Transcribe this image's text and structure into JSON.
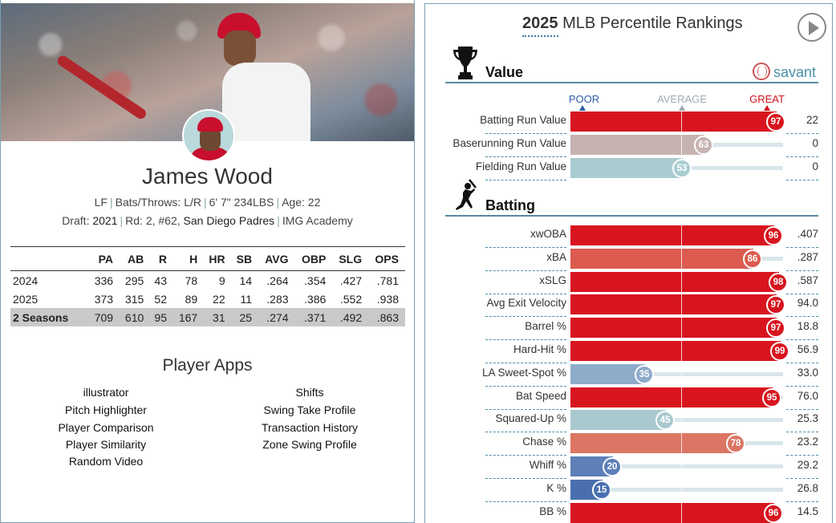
{
  "player": {
    "name": "James Wood",
    "bio": {
      "position": "LF",
      "bats_throws": "Bats/Throws: L/R",
      "size": "6' 7\" 234LBS",
      "age": "Age: 22"
    },
    "draft": {
      "label": "Draft:",
      "year": "2021",
      "round": "Rd: 2, #62,",
      "team": "San Diego Padres",
      "school": "IMG Academy"
    }
  },
  "stats_table": {
    "headers": [
      "",
      "PA",
      "AB",
      "R",
      "H",
      "HR",
      "SB",
      "AVG",
      "OBP",
      "SLG",
      "OPS"
    ],
    "rows": [
      [
        "2024",
        "336",
        "295",
        "43",
        "78",
        "9",
        "14",
        ".264",
        ".354",
        ".427",
        ".781"
      ],
      [
        "2025",
        "373",
        "315",
        "52",
        "89",
        "22",
        "11",
        ".283",
        ".386",
        ".552",
        ".938"
      ],
      [
        "2 Seasons",
        "709",
        "610",
        "95",
        "167",
        "31",
        "25",
        ".274",
        ".371",
        ".492",
        ".863"
      ]
    ]
  },
  "player_apps": {
    "title": "Player Apps",
    "left": [
      "illustrator",
      "Pitch Highlighter",
      "Player Comparison",
      "Player Similarity",
      "Random Video"
    ],
    "right": [
      "Shifts",
      "Swing Take Profile",
      "Transaction History",
      "Zone Swing Profile"
    ]
  },
  "rankings": {
    "title_year": "2025",
    "title_rest": "MLB Percentile Rankings",
    "brand": "savant",
    "scale": {
      "poor": "POOR",
      "average": "AVERAGE",
      "great": "GREAT"
    },
    "colors": {
      "poor": "#2e5ea8",
      "average": "#a0aab0",
      "great": "#d0141e"
    },
    "value_section": {
      "label": "Value",
      "icon": "trophy-icon",
      "metrics": [
        {
          "name": "Batting Run Value",
          "pct": 97,
          "value": "22",
          "color": "#d8151f"
        },
        {
          "name": "Baserunning Run Value",
          "pct": 63,
          "value": "0",
          "color": "#c6b3b1"
        },
        {
          "name": "Fielding Run Value",
          "pct": 53,
          "value": "0",
          "color": "#a9ccd1"
        }
      ]
    },
    "batting_section": {
      "label": "Batting",
      "icon": "batter-icon",
      "metrics": [
        {
          "name": "xwOBA",
          "pct": 96,
          "value": ".407",
          "color": "#d8151f"
        },
        {
          "name": "xBA",
          "pct": 86,
          "value": ".287",
          "color": "#dc5a4f"
        },
        {
          "name": "xSLG",
          "pct": 98,
          "value": ".587",
          "color": "#d8151f"
        },
        {
          "name": "Avg Exit Velocity",
          "pct": 97,
          "value": "94.0",
          "color": "#d8151f"
        },
        {
          "name": "Barrel %",
          "pct": 97,
          "value": "18.8",
          "color": "#d8151f"
        },
        {
          "name": "Hard-Hit %",
          "pct": 99,
          "value": "56.9",
          "color": "#d8151f"
        },
        {
          "name": "LA Sweet-Spot %",
          "pct": 35,
          "value": "33.0",
          "color": "#8eabc9"
        },
        {
          "name": "Bat Speed",
          "pct": 95,
          "value": "76.0",
          "color": "#d8151f"
        },
        {
          "name": "Squared-Up %",
          "pct": 45,
          "value": "25.3",
          "color": "#aac9cf"
        },
        {
          "name": "Chase %",
          "pct": 78,
          "value": "23.2",
          "color": "#dc7563"
        },
        {
          "name": "Whiff %",
          "pct": 20,
          "value": "29.2",
          "color": "#5e7fb8"
        },
        {
          "name": "K %",
          "pct": 15,
          "value": "26.8",
          "color": "#4a6fb0"
        },
        {
          "name": "BB %",
          "pct": 96,
          "value": "14.5",
          "color": "#d8151f"
        }
      ]
    }
  }
}
